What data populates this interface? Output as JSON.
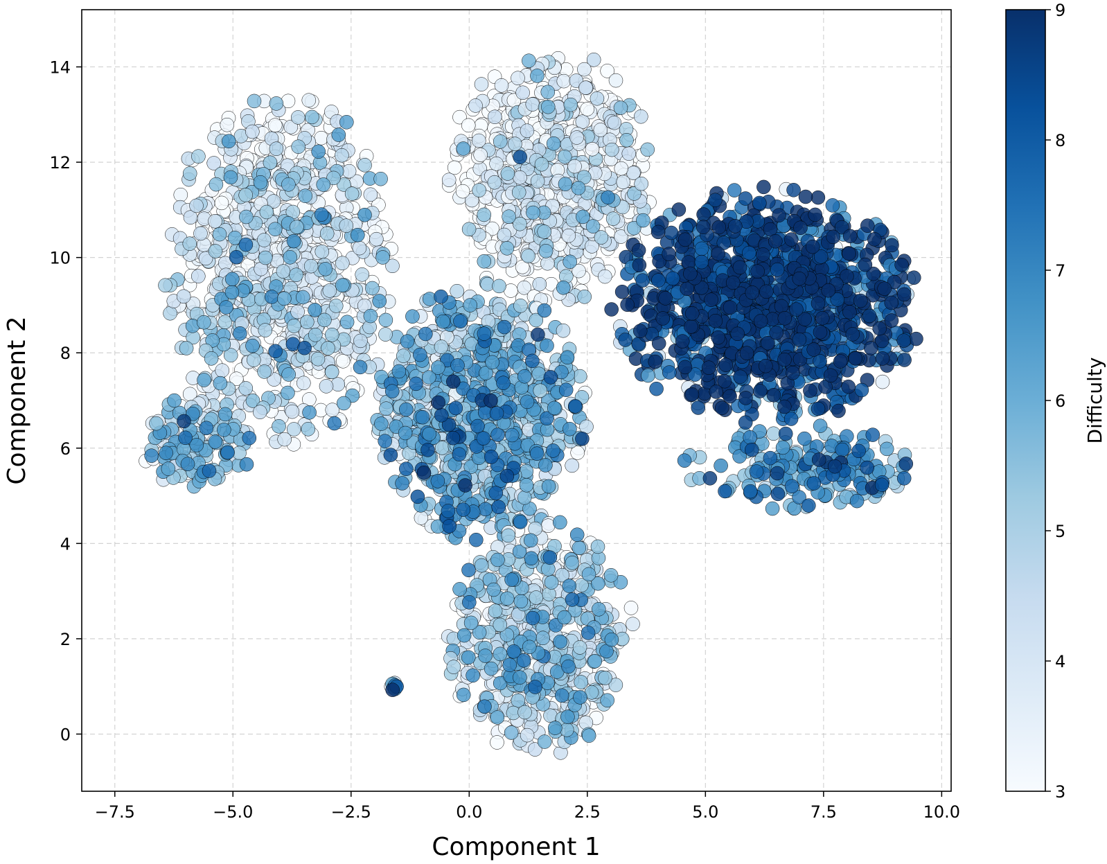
{
  "chart_data": {
    "type": "scatter",
    "title": "",
    "xlabel": "Component 1",
    "ylabel": "Component 2",
    "xlim": [
      -8.2,
      10.2
    ],
    "ylim": [
      -1.2,
      15.2
    ],
    "xticks": [
      -7.5,
      -5.0,
      -2.5,
      0.0,
      2.5,
      5.0,
      7.5,
      10.0
    ],
    "xtick_labels": [
      "−7.5",
      "−5.0",
      "−2.5",
      "0.0",
      "2.5",
      "5.0",
      "7.5",
      "10.0"
    ],
    "yticks": [
      0,
      2,
      4,
      6,
      8,
      10,
      12,
      14
    ],
    "ytick_labels": [
      "0",
      "2",
      "4",
      "6",
      "8",
      "10",
      "12",
      "14"
    ],
    "grid": true,
    "colorbar": {
      "label": "Difficulty",
      "min": 3,
      "max": 9,
      "ticks": [
        3,
        4,
        5,
        6,
        7,
        8,
        9
      ],
      "tick_labels": [
        "3",
        "4",
        "5",
        "6",
        "7",
        "8",
        "9"
      ],
      "colormap": "Blues",
      "colors": [
        "#f7fbff",
        "#deebf7",
        "#c6dbef",
        "#9ecae1",
        "#6baed6",
        "#4292c6",
        "#2171b5",
        "#08519c",
        "#08306b"
      ]
    },
    "clusters": [
      {
        "region": "upper-left lobe",
        "x_range": [
          -6.5,
          -1.5
        ],
        "y_range": [
          6.0,
          13.5
        ],
        "typical_difficulty": 4,
        "approx_points": 900
      },
      {
        "region": "upper-center lobe",
        "x_range": [
          -0.5,
          4.0
        ],
        "y_range": [
          9.0,
          14.4
        ],
        "typical_difficulty": 3.5,
        "approx_points": 700
      },
      {
        "region": "center mixed area",
        "x_range": [
          -2.0,
          2.5
        ],
        "y_range": [
          4.0,
          9.5
        ],
        "typical_difficulty": 5.5,
        "approx_points": 900
      },
      {
        "region": "dense dark cluster",
        "x_range": [
          3.0,
          9.6
        ],
        "y_range": [
          6.5,
          11.5
        ],
        "typical_difficulty": 8.7,
        "approx_points": 1200
      },
      {
        "region": "lower-center lobe",
        "x_range": [
          -0.5,
          3.5
        ],
        "y_range": [
          -0.5,
          4.5
        ],
        "typical_difficulty": 4.5,
        "approx_points": 600
      },
      {
        "region": "left arm",
        "x_range": [
          -7.0,
          -4.5
        ],
        "y_range": [
          5.0,
          7.2
        ],
        "typical_difficulty": 5,
        "approx_points": 150
      },
      {
        "region": "right arm",
        "x_range": [
          4.5,
          9.5
        ],
        "y_range": [
          4.7,
          6.5
        ],
        "typical_difficulty": 6.5,
        "approx_points": 200
      },
      {
        "region": "small isolated cluster",
        "x_range": [
          -1.7,
          -1.5
        ],
        "y_range": [
          0.9,
          1.1
        ],
        "typical_difficulty": 7,
        "approx_points": 10
      }
    ]
  }
}
